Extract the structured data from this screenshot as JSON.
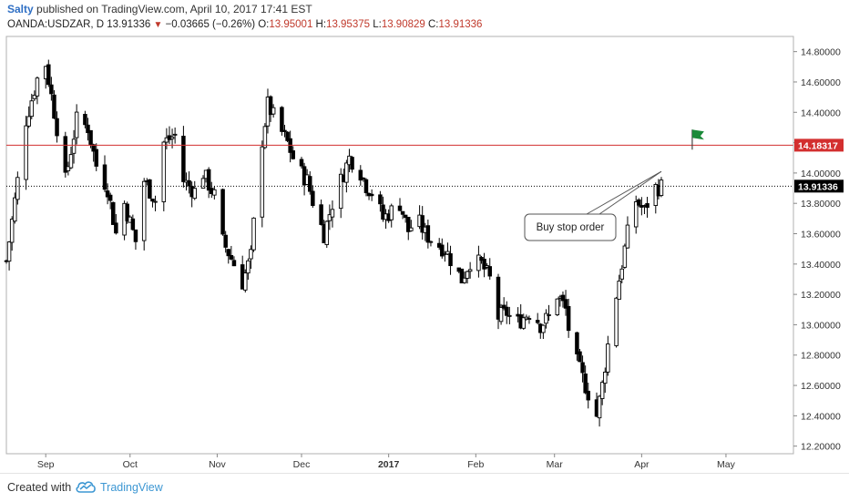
{
  "header": {
    "author": "Salty",
    "published": "published on TradingView.com, April 10, 2017 17:41 EST",
    "symbol": "OANDA:USDZAR, D",
    "last": "13.91336",
    "change": "−0.03665 (−0.26%)",
    "open_label": "O:",
    "open": "13.95001",
    "high_label": "H:",
    "high": "13.95375",
    "low_label": "L:",
    "low": "13.90829",
    "close_label": "C:",
    "close": "13.91336"
  },
  "footer": {
    "created_with": "Created with",
    "brand": "TradingView"
  },
  "colors": {
    "up": "#ffffff",
    "down": "#000000",
    "resistance": "#d32f2f",
    "price_tag": "#000000",
    "flag": "#1b8a3a",
    "accent": "#3d97d3"
  },
  "icons": {
    "change": "down-triangle-icon",
    "flag": "flag-icon",
    "logo": "tradingview-cloud-icon"
  },
  "chart_data": {
    "type": "candlestick",
    "ylim": [
      12.15,
      14.9
    ],
    "y_ticks": [
      "14.80000",
      "14.60000",
      "14.40000",
      "14.20000",
      "14.00000",
      "13.80000",
      "13.60000",
      "13.40000",
      "13.20000",
      "13.00000",
      "12.80000",
      "12.60000",
      "12.40000",
      "12.20000"
    ],
    "x_ticks": [
      {
        "label": "Sep",
        "day": 0
      },
      {
        "label": "Oct",
        "day": 30
      },
      {
        "label": "Nov",
        "day": 61
      },
      {
        "label": "Dec",
        "day": 91
      },
      {
        "label": "2017",
        "day": 122,
        "bold": true
      },
      {
        "label": "Feb",
        "day": 153
      },
      {
        "label": "Mar",
        "day": 181
      },
      {
        "label": "Apr",
        "day": 212
      },
      {
        "label": "May",
        "day": 242
      }
    ],
    "x_range_days": [
      -14,
      266
    ],
    "resistance": {
      "value": 14.18317,
      "label": "14.18317"
    },
    "current": {
      "value": 13.91336,
      "label": "13.91336"
    },
    "annotation": {
      "text": "Buy stop order",
      "target_value": 14.01,
      "target_day": 219
    },
    "flag": {
      "value": 14.25,
      "day": 230
    },
    "closes_anchor": [
      [
        -14,
        13.42
      ],
      [
        -10,
        13.95
      ],
      [
        -7,
        14.35
      ],
      [
        -3,
        14.62
      ],
      [
        0,
        14.72
      ],
      [
        4,
        14.3
      ],
      [
        7,
        13.95
      ],
      [
        11,
        14.35
      ],
      [
        15,
        14.3
      ],
      [
        18,
        14.05
      ],
      [
        22,
        13.9
      ],
      [
        25,
        13.6
      ],
      [
        28,
        13.8
      ],
      [
        32,
        13.55
      ],
      [
        35,
        13.95
      ],
      [
        39,
        13.82
      ],
      [
        42,
        14.2
      ],
      [
        46,
        14.25
      ],
      [
        49,
        13.95
      ],
      [
        53,
        13.88
      ],
      [
        56,
        14.0
      ],
      [
        60,
        13.85
      ],
      [
        63,
        13.55
      ],
      [
        67,
        13.4
      ],
      [
        70,
        13.28
      ],
      [
        73,
        13.45
      ],
      [
        76,
        14.1
      ],
      [
        79,
        14.45
      ],
      [
        83,
        14.3
      ],
      [
        86,
        14.2
      ],
      [
        89,
        14.05
      ],
      [
        93,
        13.95
      ],
      [
        96,
        13.75
      ],
      [
        99,
        13.6
      ],
      [
        102,
        13.8
      ],
      [
        105,
        13.95
      ],
      [
        108,
        14.1
      ],
      [
        111,
        14.05
      ],
      [
        114,
        13.92
      ],
      [
        117,
        13.85
      ],
      [
        120,
        13.7
      ],
      [
        123,
        13.75
      ],
      [
        126,
        13.8
      ],
      [
        129,
        13.62
      ],
      [
        132,
        13.7
      ],
      [
        135,
        13.6
      ],
      [
        138,
        13.55
      ],
      [
        142,
        13.5
      ],
      [
        145,
        13.4
      ],
      [
        148,
        13.3
      ],
      [
        151,
        13.42
      ],
      [
        155,
        13.4
      ],
      [
        158,
        13.3
      ],
      [
        161,
        13.05
      ],
      [
        164,
        13.08
      ],
      [
        167,
        13.0
      ],
      [
        170,
        13.05
      ],
      [
        173,
        13.1
      ],
      [
        176,
        13.0
      ],
      [
        179,
        13.05
      ],
      [
        182,
        13.2
      ],
      [
        185,
        13.1
      ],
      [
        187,
        12.85
      ],
      [
        190,
        12.7
      ],
      [
        193,
        12.55
      ],
      [
        196,
        12.4
      ],
      [
        198,
        12.6
      ],
      [
        201,
        13.0
      ],
      [
        204,
        13.3
      ],
      [
        207,
        13.6
      ],
      [
        210,
        13.82
      ],
      [
        213,
        13.75
      ],
      [
        216,
        13.9
      ],
      [
        219,
        13.91
      ]
    ],
    "hl_anchor": [
      [
        -14,
        13.35,
        13.5
      ],
      [
        0,
        14.65,
        14.76
      ],
      [
        7,
        13.85,
        14.05
      ],
      [
        25,
        13.5,
        13.7
      ],
      [
        42,
        14.1,
        14.35
      ],
      [
        70,
        13.18,
        13.4
      ],
      [
        79,
        14.35,
        14.65
      ],
      [
        99,
        13.5,
        13.7
      ],
      [
        108,
        14.0,
        14.2
      ],
      [
        148,
        13.22,
        13.4
      ],
      [
        167,
        12.9,
        13.1
      ],
      [
        196,
        12.32,
        12.5
      ],
      [
        219,
        13.86,
        13.96
      ]
    ]
  }
}
